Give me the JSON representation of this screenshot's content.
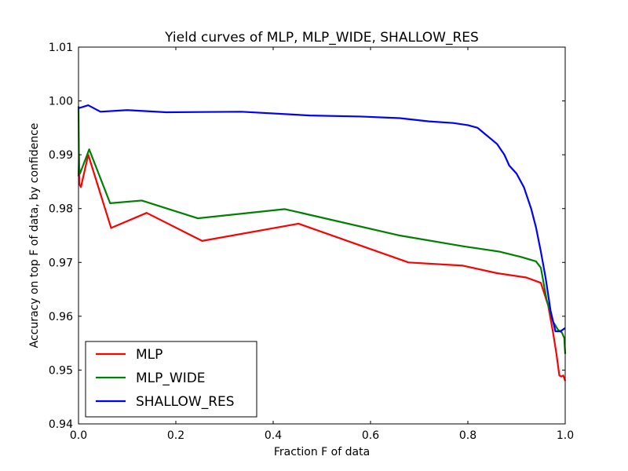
{
  "chart_data": {
    "type": "line",
    "title": "Yield curves of MLP, MLP_WIDE, SHALLOW_RES",
    "xlabel": "Fraction F of data",
    "ylabel": "Accuracy on top F of data, by confidence",
    "xlim": [
      0.0,
      1.0
    ],
    "ylim": [
      0.94,
      1.01
    ],
    "xticks": [
      0.0,
      0.2,
      0.4,
      0.6,
      0.8,
      1.0
    ],
    "xtick_labels": [
      "0.0",
      "0.2",
      "0.4",
      "0.6",
      "0.8",
      "1.0"
    ],
    "yticks": [
      0.94,
      0.95,
      0.96,
      0.97,
      0.98,
      0.99,
      1.0,
      1.01
    ],
    "ytick_labels": [
      "0.94",
      "0.95",
      "0.96",
      "0.97",
      "0.98",
      "0.99",
      "1.00",
      "1.01"
    ],
    "grid": false,
    "legend_position": "lower-left",
    "series": [
      {
        "name": "MLP",
        "color": "#ff0000",
        "x": [
          0.0,
          0.001,
          0.002,
          0.005,
          0.02,
          0.067,
          0.14,
          0.254,
          0.452,
          0.678,
          0.79,
          0.86,
          0.92,
          0.95,
          0.965,
          0.975,
          0.982,
          0.988,
          0.992,
          0.996,
          1.0
        ],
        "y": [
          0.986,
          0.99,
          0.9845,
          0.984,
          0.99,
          0.9764,
          0.9792,
          0.974,
          0.9772,
          0.97,
          0.9694,
          0.968,
          0.9672,
          0.9662,
          0.962,
          0.957,
          0.953,
          0.949,
          0.9488,
          0.949,
          0.948
        ]
      },
      {
        "name": "MLP_WIDE",
        "color": "#008000",
        "x": [
          0.0,
          0.001,
          0.003,
          0.022,
          0.065,
          0.13,
          0.245,
          0.424,
          0.66,
          0.79,
          0.865,
          0.91,
          0.94,
          0.95,
          0.962,
          0.975,
          0.985,
          0.993,
          0.998,
          1.0
        ],
        "y": [
          0.999,
          0.988,
          0.9865,
          0.991,
          0.981,
          0.9815,
          0.9782,
          0.9799,
          0.975,
          0.973,
          0.972,
          0.971,
          0.9702,
          0.969,
          0.963,
          0.959,
          0.9575,
          0.957,
          0.956,
          0.953
        ]
      },
      {
        "name": "SHALLOW_RES",
        "color": "#0000ff",
        "x": [
          0.0,
          0.002,
          0.02,
          0.045,
          0.1,
          0.18,
          0.335,
          0.475,
          0.58,
          0.66,
          0.72,
          0.77,
          0.8,
          0.82,
          0.84,
          0.86,
          0.875,
          0.885,
          0.9,
          0.915,
          0.93,
          0.94,
          0.95,
          0.96,
          0.97,
          0.98,
          0.99,
          1.0
        ],
        "y": [
          0.9988,
          0.9987,
          0.9992,
          0.998,
          0.9983,
          0.9979,
          0.998,
          0.9973,
          0.9971,
          0.9968,
          0.9962,
          0.9959,
          0.9955,
          0.995,
          0.9935,
          0.992,
          0.99,
          0.988,
          0.9865,
          0.984,
          0.98,
          0.9765,
          0.972,
          0.967,
          0.961,
          0.9572,
          0.9572,
          0.9578
        ]
      }
    ]
  }
}
